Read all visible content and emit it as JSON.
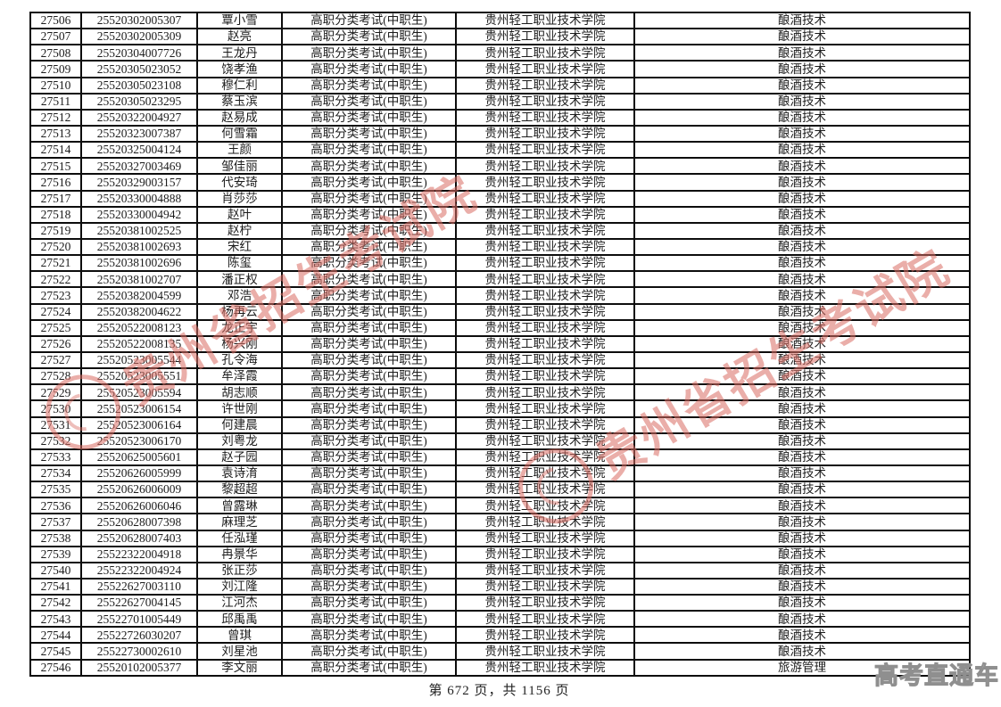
{
  "table": {
    "border_color": "#0d0d0d",
    "rows": [
      [
        "27506",
        "25520302005307",
        "覃小雪",
        "高职分类考试(中职生)",
        "贵州轻工职业技术学院",
        "酿酒技术"
      ],
      [
        "27507",
        "25520302005309",
        "赵亮",
        "高职分类考试(中职生)",
        "贵州轻工职业技术学院",
        "酿酒技术"
      ],
      [
        "27508",
        "25520304007726",
        "王龙丹",
        "高职分类考试(中职生)",
        "贵州轻工职业技术学院",
        "酿酒技术"
      ],
      [
        "27509",
        "25520305023052",
        "饶孝渔",
        "高职分类考试(中职生)",
        "贵州轻工职业技术学院",
        "酿酒技术"
      ],
      [
        "27510",
        "25520305023108",
        "穆仁利",
        "高职分类考试(中职生)",
        "贵州轻工职业技术学院",
        "酿酒技术"
      ],
      [
        "27511",
        "25520305023295",
        "蔡玉滨",
        "高职分类考试(中职生)",
        "贵州轻工职业技术学院",
        "酿酒技术"
      ],
      [
        "27512",
        "25520322004927",
        "赵易成",
        "高职分类考试(中职生)",
        "贵州轻工职业技术学院",
        "酿酒技术"
      ],
      [
        "27513",
        "25520323007387",
        "何雪霜",
        "高职分类考试(中职生)",
        "贵州轻工职业技术学院",
        "酿酒技术"
      ],
      [
        "27514",
        "25520325004124",
        "王颜",
        "高职分类考试(中职生)",
        "贵州轻工职业技术学院",
        "酿酒技术"
      ],
      [
        "27515",
        "25520327003469",
        "邹佳丽",
        "高职分类考试(中职生)",
        "贵州轻工职业技术学院",
        "酿酒技术"
      ],
      [
        "27516",
        "25520329003157",
        "代安琦",
        "高职分类考试(中职生)",
        "贵州轻工职业技术学院",
        "酿酒技术"
      ],
      [
        "27517",
        "25520330004888",
        "肖莎莎",
        "高职分类考试(中职生)",
        "贵州轻工职业技术学院",
        "酿酒技术"
      ],
      [
        "27518",
        "25520330004942",
        "赵叶",
        "高职分类考试(中职生)",
        "贵州轻工职业技术学院",
        "酿酒技术"
      ],
      [
        "27519",
        "25520381002525",
        "赵柠",
        "高职分类考试(中职生)",
        "贵州轻工职业技术学院",
        "酿酒技术"
      ],
      [
        "27520",
        "25520381002693",
        "宋红",
        "高职分类考试(中职生)",
        "贵州轻工职业技术学院",
        "酿酒技术"
      ],
      [
        "27521",
        "25520381002696",
        "陈玺",
        "高职分类考试(中职生)",
        "贵州轻工职业技术学院",
        "酿酒技术"
      ],
      [
        "27522",
        "25520381002707",
        "潘正权",
        "高职分类考试(中职生)",
        "贵州轻工职业技术学院",
        "酿酒技术"
      ],
      [
        "27523",
        "25520382004599",
        "邓浩",
        "高职分类考试(中职生)",
        "贵州轻工职业技术学院",
        "酿酒技术"
      ],
      [
        "27524",
        "25520382004622",
        "杨再云",
        "高职分类考试(中职生)",
        "贵州轻工职业技术学院",
        "酿酒技术"
      ],
      [
        "27525",
        "25520522008123",
        "龙正宇",
        "高职分类考试(中职生)",
        "贵州轻工职业技术学院",
        "酿酒技术"
      ],
      [
        "27526",
        "25520522008135",
        "杨兴刚",
        "高职分类考试(中职生)",
        "贵州轻工职业技术学院",
        "酿酒技术"
      ],
      [
        "27527",
        "25520523005544",
        "孔令海",
        "高职分类考试(中职生)",
        "贵州轻工职业技术学院",
        "酿酒技术"
      ],
      [
        "27528",
        "25520523005551",
        "牟泽霞",
        "高职分类考试(中职生)",
        "贵州轻工职业技术学院",
        "酿酒技术"
      ],
      [
        "27529",
        "25520523005594",
        "胡志顺",
        "高职分类考试(中职生)",
        "贵州轻工职业技术学院",
        "酿酒技术"
      ],
      [
        "27530",
        "25520523006154",
        "许世刚",
        "高职分类考试(中职生)",
        "贵州轻工职业技术学院",
        "酿酒技术"
      ],
      [
        "27531",
        "25520523006164",
        "何建晨",
        "高职分类考试(中职生)",
        "贵州轻工职业技术学院",
        "酿酒技术"
      ],
      [
        "27532",
        "25520523006170",
        "刘粤龙",
        "高职分类考试(中职生)",
        "贵州轻工职业技术学院",
        "酿酒技术"
      ],
      [
        "27533",
        "25520625005601",
        "赵子园",
        "高职分类考试(中职生)",
        "贵州轻工职业技术学院",
        "酿酒技术"
      ],
      [
        "27534",
        "25520626005999",
        "袁诗淯",
        "高职分类考试(中职生)",
        "贵州轻工职业技术学院",
        "酿酒技术"
      ],
      [
        "27535",
        "25520626006009",
        "黎超超",
        "高职分类考试(中职生)",
        "贵州轻工职业技术学院",
        "酿酒技术"
      ],
      [
        "27536",
        "25520626006046",
        "曾露琳",
        "高职分类考试(中职生)",
        "贵州轻工职业技术学院",
        "酿酒技术"
      ],
      [
        "27537",
        "25520628007398",
        "麻理芝",
        "高职分类考试(中职生)",
        "贵州轻工职业技术学院",
        "酿酒技术"
      ],
      [
        "27538",
        "25520628007403",
        "任泓瑾",
        "高职分类考试(中职生)",
        "贵州轻工职业技术学院",
        "酿酒技术"
      ],
      [
        "27539",
        "25522322004918",
        "冉景华",
        "高职分类考试(中职生)",
        "贵州轻工职业技术学院",
        "酿酒技术"
      ],
      [
        "27540",
        "25522322004924",
        "张正莎",
        "高职分类考试(中职生)",
        "贵州轻工职业技术学院",
        "酿酒技术"
      ],
      [
        "27541",
        "25522627003110",
        "刘江隆",
        "高职分类考试(中职生)",
        "贵州轻工职业技术学院",
        "酿酒技术"
      ],
      [
        "27542",
        "25522627004145",
        "江河杰",
        "高职分类考试(中职生)",
        "贵州轻工职业技术学院",
        "酿酒技术"
      ],
      [
        "27543",
        "25522701005449",
        "邱禹禹",
        "高职分类考试(中职生)",
        "贵州轻工职业技术学院",
        "酿酒技术"
      ],
      [
        "27544",
        "25522726030207",
        "曾琪",
        "高职分类考试(中职生)",
        "贵州轻工职业技术学院",
        "酿酒技术"
      ],
      [
        "27545",
        "25522730002610",
        "刘星池",
        "高职分类考试(中职生)",
        "贵州轻工职业技术学院",
        "酿酒技术"
      ],
      [
        "27546",
        "25520102005377",
        "李文丽",
        "高职分类考试(中职生)",
        "贵州轻工职业技术学院",
        "旅游管理"
      ]
    ]
  },
  "watermarks": {
    "red_seal_text": "贵州省招生考试院",
    "red_color": "#d96c63",
    "gray_logo_text": "高考直通车",
    "gray_color": "#8f8f8f"
  },
  "footer": {
    "text": "第 672 页，共 1156 页",
    "page_number": "672",
    "total_pages": "1156"
  }
}
